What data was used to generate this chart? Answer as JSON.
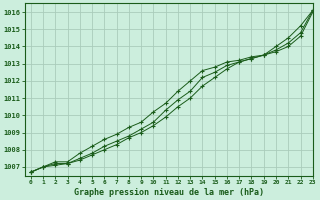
{
  "title": "Graphe pression niveau de la mer (hPa)",
  "bg_color": "#cceedd",
  "grid_color": "#aaccbb",
  "line_color": "#1a5c1a",
  "xlim": [
    -0.5,
    23
  ],
  "ylim": [
    1006.5,
    1016.5
  ],
  "xticks": [
    0,
    1,
    2,
    3,
    4,
    5,
    6,
    7,
    8,
    9,
    10,
    11,
    12,
    13,
    14,
    15,
    16,
    17,
    18,
    19,
    20,
    21,
    22,
    23
  ],
  "yticks": [
    1007,
    1008,
    1009,
    1010,
    1011,
    1012,
    1013,
    1014,
    1015,
    1016
  ],
  "series1_x": [
    0,
    1,
    2,
    3,
    4,
    5,
    6,
    7,
    8,
    9,
    10,
    11,
    12,
    13,
    14,
    15,
    16,
    17,
    18,
    19,
    20,
    21,
    22,
    23
  ],
  "series1_y": [
    1006.7,
    1007.0,
    1007.3,
    1007.3,
    1007.8,
    1008.2,
    1008.6,
    1008.9,
    1009.3,
    1009.6,
    1010.2,
    1010.7,
    1011.4,
    1012.0,
    1012.6,
    1012.8,
    1013.1,
    1013.2,
    1013.4,
    1013.5,
    1014.0,
    1014.5,
    1015.2,
    1016.1
  ],
  "series2_x": [
    0,
    1,
    2,
    3,
    4,
    5,
    6,
    7,
    8,
    9,
    10,
    11,
    12,
    13,
    14,
    15,
    16,
    17,
    18,
    19,
    20,
    21,
    22,
    23
  ],
  "series2_y": [
    1006.7,
    1007.0,
    1007.2,
    1007.2,
    1007.5,
    1007.8,
    1008.2,
    1008.5,
    1008.8,
    1009.2,
    1009.6,
    1010.3,
    1010.9,
    1011.4,
    1012.2,
    1012.5,
    1012.9,
    1013.1,
    1013.3,
    1013.5,
    1013.8,
    1014.2,
    1014.8,
    1016.1
  ],
  "series3_x": [
    0,
    1,
    2,
    3,
    4,
    5,
    6,
    7,
    8,
    9,
    10,
    11,
    12,
    13,
    14,
    15,
    16,
    17,
    18,
    19,
    20,
    21,
    22,
    23
  ],
  "series3_y": [
    1006.7,
    1007.0,
    1007.1,
    1007.2,
    1007.4,
    1007.7,
    1008.0,
    1008.3,
    1008.7,
    1009.0,
    1009.4,
    1009.9,
    1010.5,
    1011.0,
    1011.7,
    1012.2,
    1012.7,
    1013.1,
    1013.3,
    1013.5,
    1013.7,
    1014.0,
    1014.6,
    1016.0
  ]
}
